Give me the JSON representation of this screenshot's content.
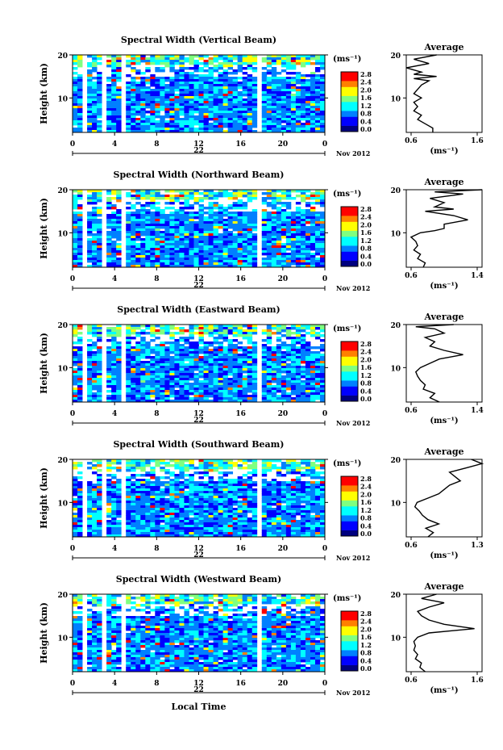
{
  "chart_data": [
    {
      "type": "heatmap",
      "title": "Spectral Width (Vertical Beam)",
      "ylabel": "Height (km)",
      "x_ticks": [
        "0",
        "4",
        "8",
        "12",
        "16",
        "20",
        "0"
      ],
      "y_ticks": [
        "10",
        "20"
      ],
      "date_day": "22",
      "date_label": "Nov 2012",
      "colorbar_unit": "(ms⁻¹)",
      "colorbar_ticks": [
        "0.0",
        "0.4",
        "0.8",
        "1.2",
        "1.6",
        "2.0",
        "2.4",
        "2.8"
      ],
      "avg_title": "Average",
      "avg_x_ticks": [
        "0.6",
        "1.6"
      ],
      "avg_y_ticks": [
        "10",
        "20"
      ],
      "avg_xlabel": "(ms⁻¹)",
      "avg_xlim": [
        0.6,
        1.6
      ],
      "avg_profile": [
        [
          1.0,
          20
        ],
        [
          0.7,
          19
        ],
        [
          0.9,
          18
        ],
        [
          0.6,
          17
        ],
        [
          0.8,
          16
        ],
        [
          0.7,
          15.5
        ],
        [
          1.0,
          15
        ],
        [
          0.7,
          14.5
        ],
        [
          0.9,
          14
        ],
        [
          0.8,
          13
        ],
        [
          0.75,
          12
        ],
        [
          0.7,
          11
        ],
        [
          0.8,
          10
        ],
        [
          0.7,
          9
        ],
        [
          0.75,
          8
        ],
        [
          0.7,
          7
        ],
        [
          0.8,
          6
        ],
        [
          0.75,
          5
        ],
        [
          0.85,
          4
        ],
        [
          0.95,
          3
        ],
        [
          0.95,
          2
        ]
      ]
    },
    {
      "type": "heatmap",
      "title": "Spectral Width (Northward Beam)",
      "ylabel": "Height (km)",
      "x_ticks": [
        "0",
        "4",
        "8",
        "12",
        "16",
        "20",
        "0"
      ],
      "y_ticks": [
        "10",
        "20"
      ],
      "date_day": "22",
      "date_label": "Nov 2012",
      "colorbar_unit": "(ms⁻¹)",
      "colorbar_ticks": [
        "0.0",
        "0.4",
        "0.8",
        "1.2",
        "1.6",
        "2.0",
        "2.4",
        "2.8"
      ],
      "avg_title": "Average",
      "avg_x_ticks": [
        "0.6",
        "1.4"
      ],
      "avg_y_ticks": [
        "10",
        "20"
      ],
      "avg_xlabel": "(ms⁻¹)",
      "avg_xlim": [
        0.6,
        1.4
      ],
      "avg_profile": [
        [
          1.4,
          20
        ],
        [
          0.9,
          19.5
        ],
        [
          1.2,
          19
        ],
        [
          0.85,
          18
        ],
        [
          1.0,
          17
        ],
        [
          0.9,
          16
        ],
        [
          1.1,
          15.5
        ],
        [
          0.8,
          15
        ],
        [
          1.1,
          14
        ],
        [
          1.25,
          13
        ],
        [
          1.0,
          12
        ],
        [
          1.0,
          11
        ],
        [
          0.9,
          10.5
        ],
        [
          0.75,
          10
        ],
        [
          0.65,
          9
        ],
        [
          0.7,
          8
        ],
        [
          0.72,
          7
        ],
        [
          0.68,
          6
        ],
        [
          0.75,
          5
        ],
        [
          0.72,
          4
        ],
        [
          0.8,
          3
        ],
        [
          0.78,
          2
        ]
      ]
    },
    {
      "type": "heatmap",
      "title": "Spectral Width (Eastward Beam)",
      "ylabel": "Height (km)",
      "x_ticks": [
        "0",
        "4",
        "8",
        "12",
        "16",
        "20",
        "0"
      ],
      "y_ticks": [
        "10",
        "20"
      ],
      "date_day": "22",
      "date_label": "Nov 2012",
      "colorbar_unit": "(ms⁻¹)",
      "colorbar_ticks": [
        "0.0",
        "0.4",
        "0.8",
        "1.2",
        "1.6",
        "2.0",
        "2.4",
        "2.8"
      ],
      "avg_title": "Average",
      "avg_x_ticks": [
        "0.6",
        "1.4"
      ],
      "avg_y_ticks": [
        "10",
        "20"
      ],
      "avg_xlabel": "(ms⁻¹)",
      "avg_xlim": [
        0.6,
        1.4
      ],
      "avg_profile": [
        [
          1.1,
          20
        ],
        [
          0.7,
          19.5
        ],
        [
          0.9,
          19
        ],
        [
          1.0,
          18
        ],
        [
          0.8,
          17
        ],
        [
          0.9,
          16
        ],
        [
          0.85,
          15
        ],
        [
          1.0,
          14
        ],
        [
          1.2,
          13
        ],
        [
          0.95,
          12
        ],
        [
          0.85,
          11
        ],
        [
          0.75,
          10
        ],
        [
          0.7,
          9
        ],
        [
          0.72,
          8
        ],
        [
          0.75,
          7
        ],
        [
          0.8,
          6
        ],
        [
          0.78,
          5
        ],
        [
          0.9,
          4
        ],
        [
          0.85,
          3
        ],
        [
          0.95,
          2
        ]
      ]
    },
    {
      "type": "heatmap",
      "title": "Spectral Width (Southward Beam)",
      "ylabel": "Height (km)",
      "x_ticks": [
        "0",
        "4",
        "8",
        "12",
        "16",
        "20",
        "0"
      ],
      "y_ticks": [
        "10",
        "20"
      ],
      "date_day": "22",
      "date_label": "Nov 2012",
      "colorbar_unit": "(ms⁻¹)",
      "colorbar_ticks": [
        "0.0",
        "0.4",
        "0.8",
        "1.2",
        "1.6",
        "2.0",
        "2.4",
        "2.8"
      ],
      "avg_title": "Average",
      "avg_x_ticks": [
        "0.6",
        "1.3"
      ],
      "avg_y_ticks": [
        "10",
        "20"
      ],
      "avg_xlabel": "(ms⁻¹)",
      "avg_xlim": [
        0.6,
        1.3
      ],
      "avg_profile": [
        [
          1.2,
          20
        ],
        [
          1.3,
          19
        ],
        [
          1.15,
          18
        ],
        [
          1.0,
          17
        ],
        [
          1.05,
          16
        ],
        [
          1.1,
          15
        ],
        [
          1.0,
          14
        ],
        [
          0.95,
          13
        ],
        [
          0.9,
          12
        ],
        [
          0.8,
          11
        ],
        [
          0.7,
          10
        ],
        [
          0.68,
          9
        ],
        [
          0.72,
          8
        ],
        [
          0.75,
          7
        ],
        [
          0.8,
          6
        ],
        [
          0.9,
          5
        ],
        [
          0.78,
          4
        ],
        [
          0.85,
          3
        ],
        [
          0.8,
          2
        ]
      ]
    },
    {
      "type": "heatmap",
      "title": "Spectral Width (Westward Beam)",
      "ylabel": "Height (km)",
      "x_ticks": [
        "0",
        "4",
        "8",
        "12",
        "16",
        "20",
        "0"
      ],
      "y_ticks": [
        "10",
        "20"
      ],
      "date_day": "22",
      "date_label": "Nov 2012",
      "colorbar_unit": "(ms⁻¹)",
      "colorbar_ticks": [
        "0.0",
        "0.4",
        "0.8",
        "1.2",
        "1.6",
        "2.0",
        "2.4",
        "2.8"
      ],
      "avg_title": "Average",
      "avg_x_ticks": [
        "0.6",
        "1.6"
      ],
      "avg_y_ticks": [
        "10",
        "20"
      ],
      "avg_xlabel": "(ms⁻¹)",
      "avg_xlim": [
        0.6,
        1.6
      ],
      "avg_profile": [
        [
          1.0,
          20
        ],
        [
          0.8,
          19
        ],
        [
          1.1,
          18
        ],
        [
          0.9,
          17
        ],
        [
          0.75,
          16
        ],
        [
          0.8,
          15
        ],
        [
          0.9,
          14
        ],
        [
          1.1,
          13
        ],
        [
          1.5,
          12
        ],
        [
          1.2,
          11.5
        ],
        [
          0.9,
          11
        ],
        [
          0.75,
          10
        ],
        [
          0.7,
          9
        ],
        [
          0.72,
          8
        ],
        [
          0.7,
          7
        ],
        [
          0.75,
          6
        ],
        [
          0.72,
          5
        ],
        [
          0.8,
          4
        ],
        [
          0.78,
          3
        ],
        [
          0.85,
          2
        ]
      ]
    }
  ],
  "x_axis_label": "Local Time",
  "y_range_km": [
    2,
    20
  ],
  "x_range_hours": [
    0,
    24
  ],
  "data_gaps_hours": [
    [
      1.0,
      1.6
    ],
    [
      2.6,
      3.3
    ],
    [
      4.6,
      5.3
    ],
    [
      10.5,
      10.8
    ],
    [
      17.7,
      18.0
    ]
  ],
  "colormap": [
    "#00007f",
    "#0000ff",
    "#0080ff",
    "#00ffff",
    "#7fff80",
    "#ffff00",
    "#ff8000",
    "#ff0000",
    "#7f0000"
  ]
}
